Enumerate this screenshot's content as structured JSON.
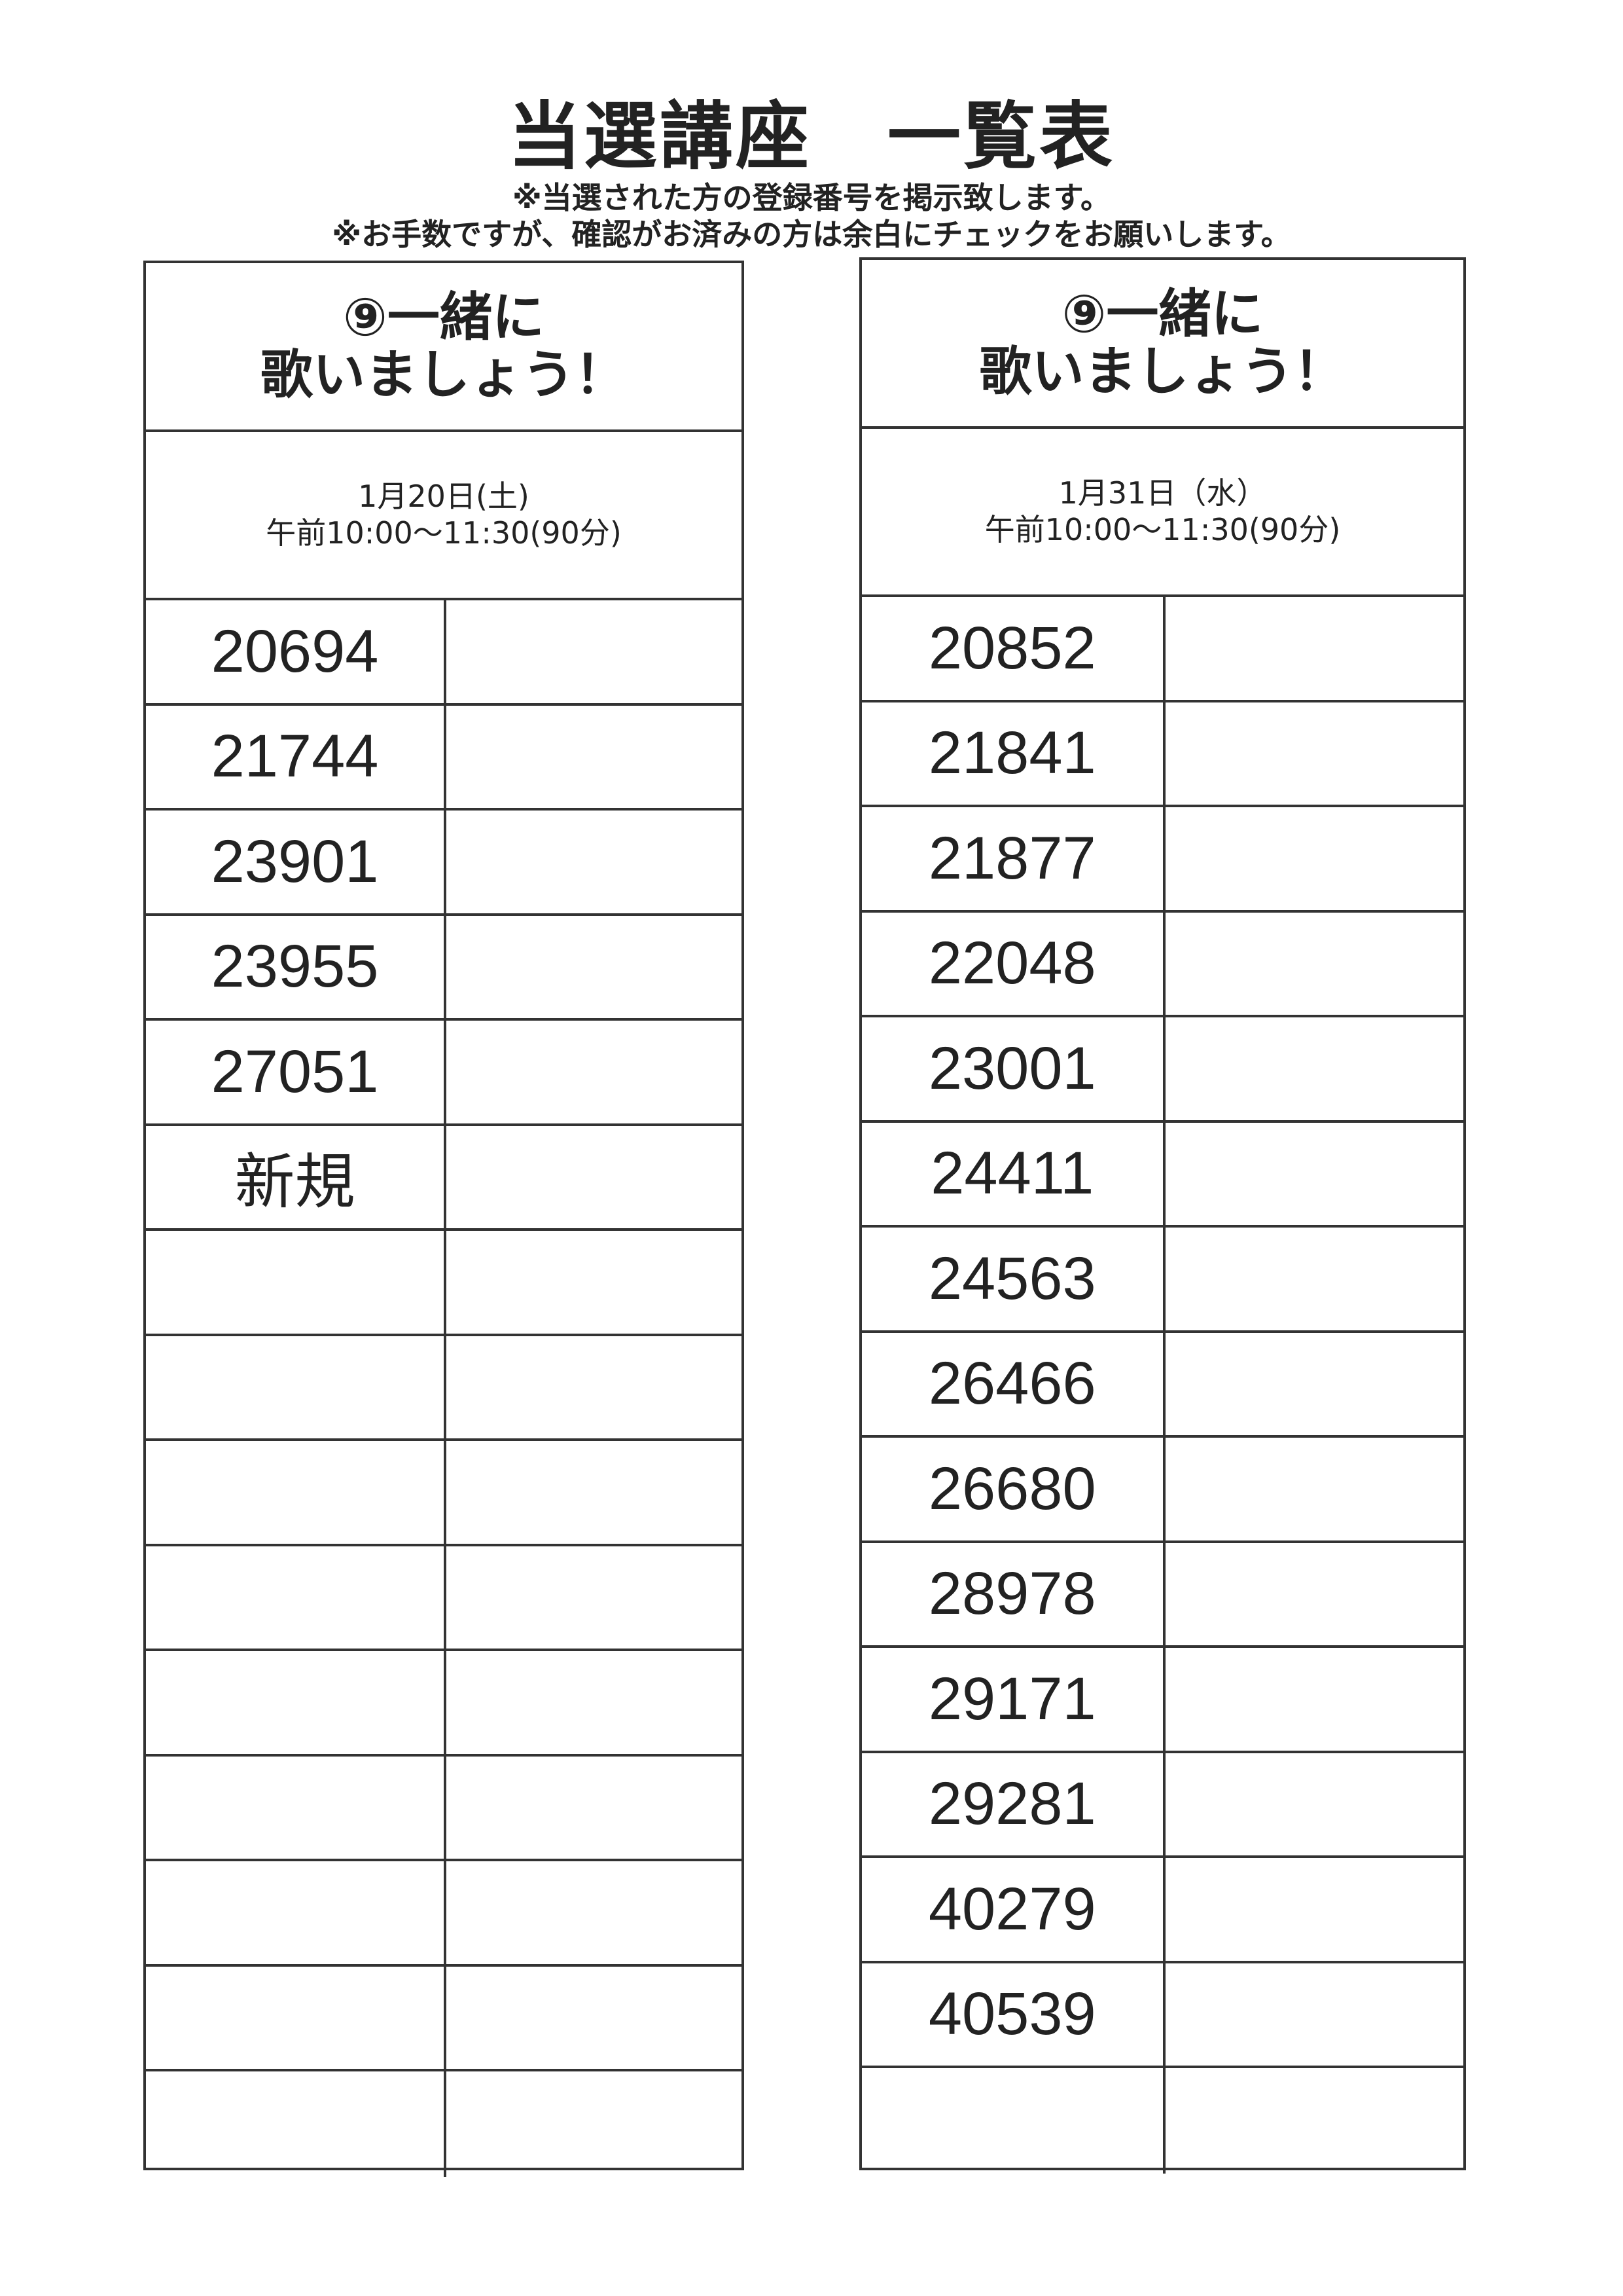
{
  "header": {
    "title": "当選講座　一覧表",
    "notes": [
      "※当選された方の登録番号を掲示致します。",
      "※お手数ですが、確認がお済みの方は余白にチェックをお願いします。"
    ]
  },
  "tables": [
    {
      "course_line1": "⑨一緒に",
      "course_line2": "歌いましょう！",
      "date": "1月20日(土)",
      "time": "午前10:00～11:30(90分)",
      "numbers": [
        "20694",
        "21744",
        "23901",
        "23955",
        "27051",
        "新規",
        "",
        "",
        "",
        "",
        "",
        "",
        "",
        "",
        ""
      ]
    },
    {
      "course_line1": "⑨一緒に",
      "course_line2": "歌いましょう！",
      "date": "1月31日（水）",
      "time": "午前10:00～11:30(90分)",
      "numbers": [
        "20852",
        "21841",
        "21877",
        "22048",
        "23001",
        "24411",
        "24563",
        "26466",
        "26680",
        "28978",
        "29171",
        "29281",
        "40279",
        "40539",
        ""
      ]
    }
  ]
}
